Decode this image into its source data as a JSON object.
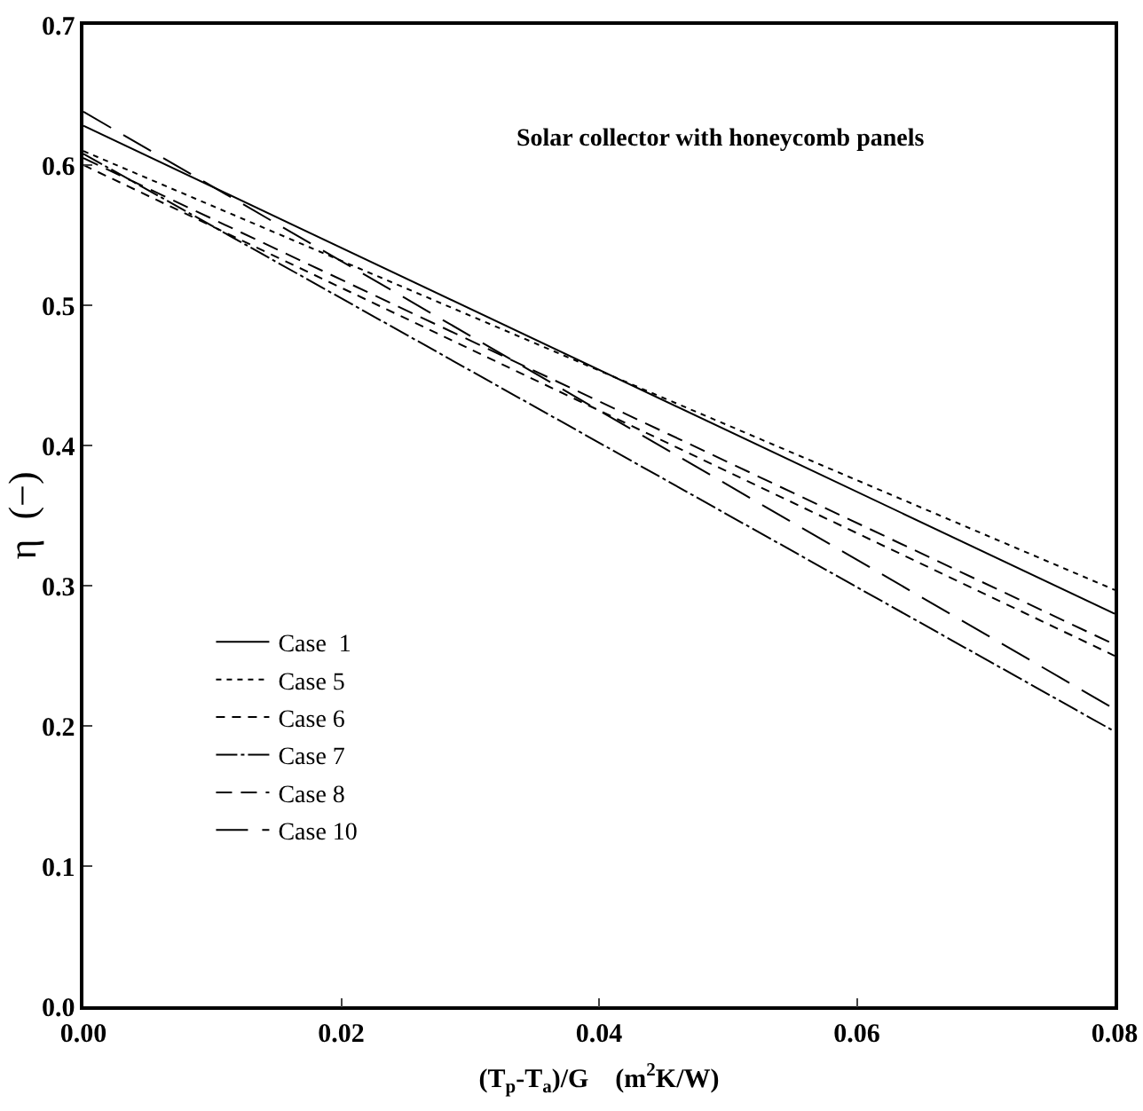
{
  "chart_data": {
    "type": "line",
    "xlabel": "(T$_{p}$-T$_{a}$)/G    (m$^{2}$K/W)",
    "ylabel": "η  (−)",
    "annotations": [
      "Solar collector with honeycomb panels"
    ],
    "x": [
      0,
      0.08
    ],
    "xlim": [
      0,
      0.08
    ],
    "xticks": [
      {
        "value": 0,
        "label": "0.00"
      },
      {
        "value": 0.02,
        "label": "0.02"
      },
      {
        "value": 0.04,
        "label": "0.04"
      },
      {
        "value": 0.06,
        "label": "0.06"
      },
      {
        "value": 0.08,
        "label": "0.08"
      }
    ],
    "ylim": [
      0,
      0.7
    ],
    "yticks": [
      {
        "value": 0,
        "label": "0.0"
      },
      0.1,
      0.2,
      0.3,
      0.4,
      0.5,
      0.6,
      0.7
    ],
    "grid": false,
    "legend": "bottom left",
    "marker": "none",
    "series": [
      {
        "name": "Case  1",
        "color": "#000000",
        "line_style": "solid",
        "values": [
          0.628,
          0.28
        ]
      },
      {
        "name": "Case 5",
        "color": "#000000",
        "line_style": "dotted",
        "values": [
          0.61,
          0.297
        ]
      },
      {
        "name": "Case 6",
        "color": "#000000",
        "line_style": "dashed",
        "values": [
          0.6,
          0.25
        ]
      },
      {
        "name": "Case 7",
        "color": "#000000",
        "line_style": "dashdot",
        "values": [
          0.608,
          0.196
        ]
      },
      {
        "name": "Case 8",
        "color": "#000000",
        "line_style": "dashed",
        "values": [
          0.605,
          0.258
        ]
      },
      {
        "name": "Case 10",
        "color": "#000000",
        "line_style": "longdashed",
        "values": [
          0.638,
          0.212
        ]
      }
    ]
  }
}
